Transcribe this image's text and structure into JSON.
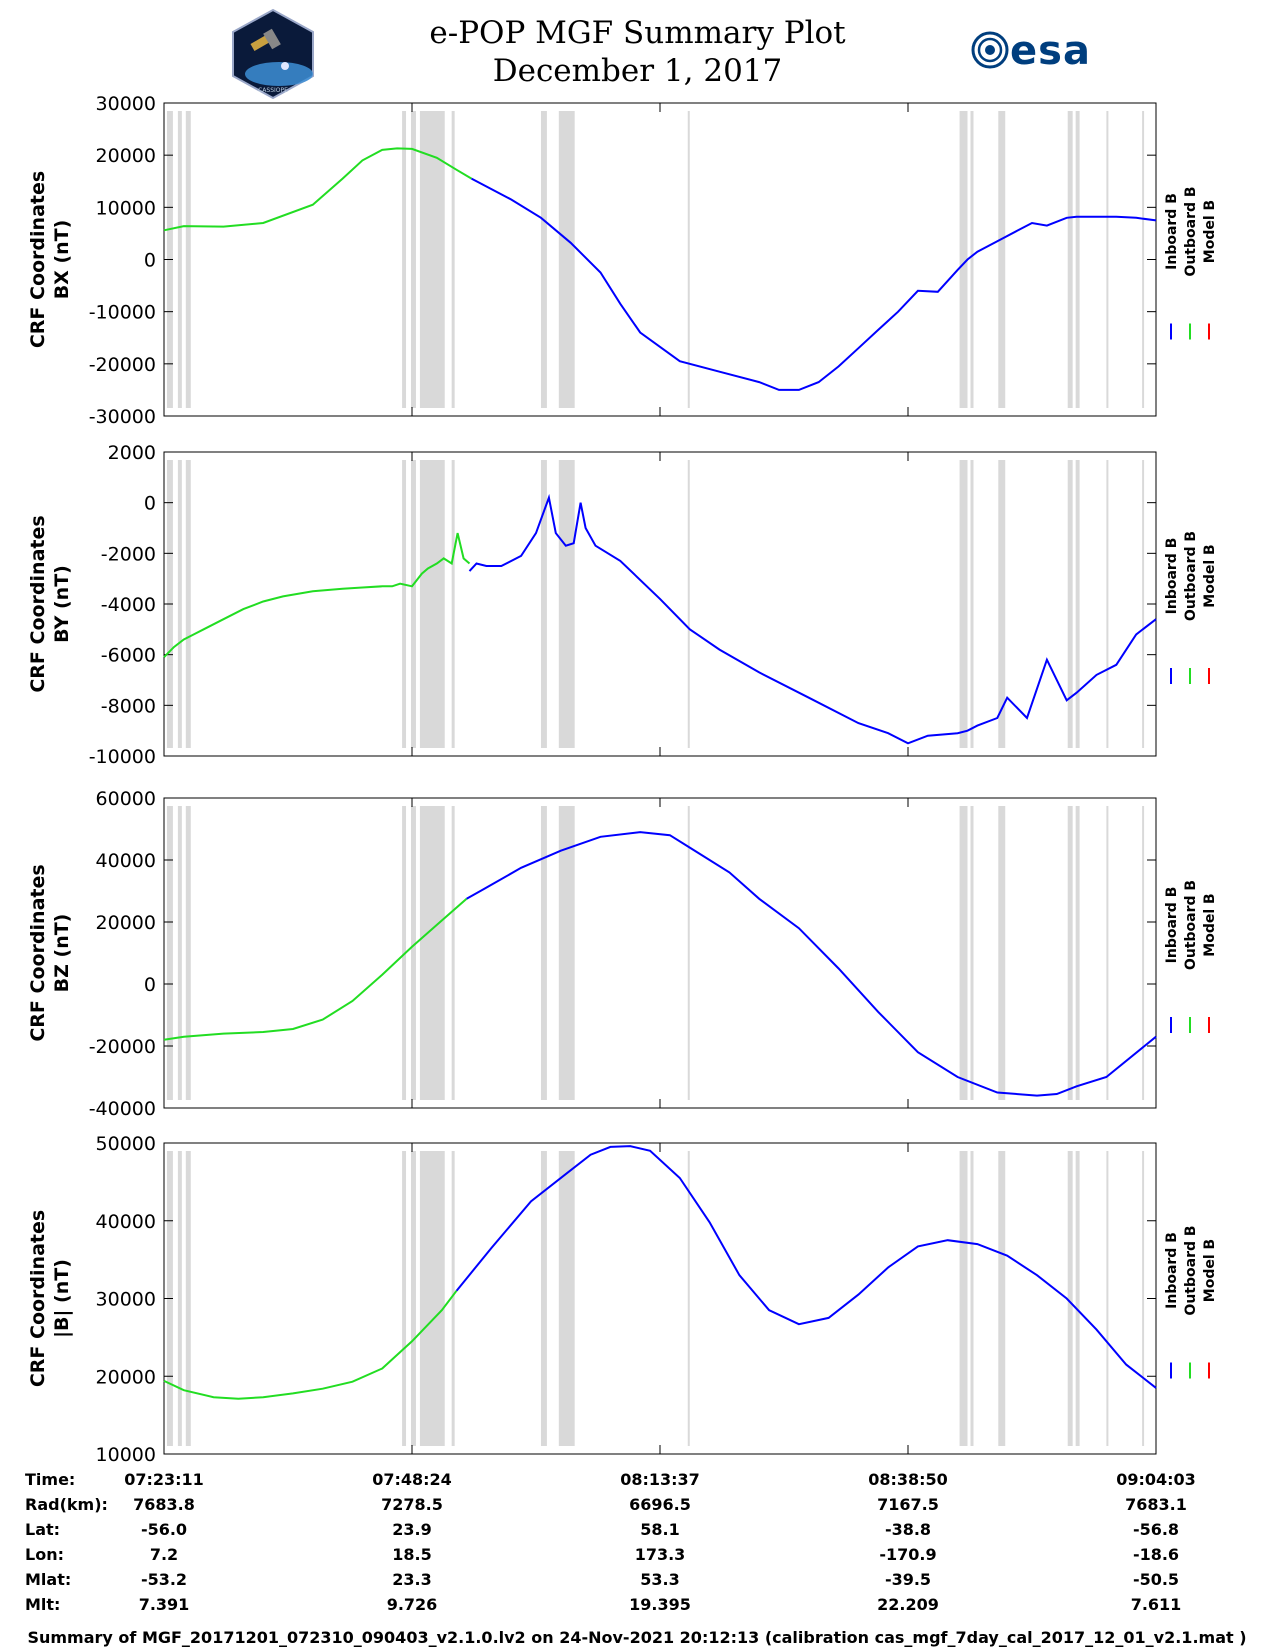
{
  "header": {
    "title": "e-POP MGF Summary Plot",
    "date": "December 1, 2017",
    "logo_left_text": "CASSIOPE",
    "logo_right_text": "esa"
  },
  "legend": {
    "labels": [
      "Inboard B",
      "Outboard B",
      "Model B"
    ]
  },
  "colors": {
    "inboard": "#0000ff",
    "outboard": "#22dd22",
    "model": "#ff0000",
    "gap_shading": "#d9d9d9"
  },
  "chart_data": [
    {
      "type": "line",
      "ylabel_line1": "CRF Coordinates",
      "ylabel_line2": "BX (nT)",
      "ylim": [
        -30000,
        30000
      ],
      "yticks": [
        -30000,
        -20000,
        -10000,
        0,
        10000,
        20000,
        30000
      ],
      "series": [
        {
          "name": "Outboard B",
          "x": [
            0,
            2,
            6,
            10,
            15,
            18,
            20,
            22,
            23.5,
            25,
            27.5,
            29.5,
            31
          ],
          "values": [
            5600,
            6400,
            6300,
            7000,
            10500,
            15500,
            19000,
            21000,
            21300,
            21200,
            19500,
            17200,
            15500
          ]
        },
        {
          "name": "Inboard B",
          "x": [
            31,
            35,
            38,
            41,
            44,
            46,
            48,
            52,
            56,
            60,
            62,
            64,
            66,
            68,
            70,
            72,
            74,
            76,
            78,
            80,
            81,
            82,
            84,
            86,
            87.5,
            89,
            91,
            92,
            94,
            96,
            98,
            100
          ],
          "values": [
            15500,
            11500,
            8000,
            3200,
            -2500,
            -8500,
            -14000,
            -19500,
            -21500,
            -23500,
            -25000,
            -25000,
            -23500,
            -20500,
            -17000,
            -13500,
            -10000,
            -6000,
            -6200,
            -2000,
            0,
            1500,
            3500,
            5500,
            7000,
            6500,
            8000,
            8200,
            8200,
            8200,
            8000,
            7500
          ]
        }
      ]
    },
    {
      "type": "line",
      "ylabel_line1": "CRF Coordinates",
      "ylabel_line2": "BY (nT)",
      "ylim": [
        -10000,
        2000
      ],
      "yticks": [
        -10000,
        -8000,
        -6000,
        -4000,
        -2000,
        0,
        2000
      ],
      "series": [
        {
          "name": "Outboard B",
          "x": [
            0,
            1,
            2,
            3,
            4,
            6,
            8,
            10,
            12,
            15,
            18,
            20,
            22,
            23,
            23.8,
            25,
            26,
            26.6,
            27.5,
            28.2,
            29,
            29.6,
            30.2,
            30.8
          ],
          "values": [
            -6100,
            -5700,
            -5400,
            -5200,
            -5000,
            -4600,
            -4200,
            -3900,
            -3700,
            -3500,
            -3400,
            -3350,
            -3300,
            -3300,
            -3200,
            -3300,
            -2800,
            -2600,
            -2400,
            -2200,
            -2400,
            -1200,
            -2200,
            -2400
          ]
        },
        {
          "name": "Inboard B",
          "x": [
            30.8,
            31.5,
            32.5,
            34,
            36,
            37.5,
            38.8,
            39.5,
            40.5,
            41.3,
            42,
            42.5,
            43.5,
            46,
            50,
            53,
            56,
            60,
            65,
            70,
            73,
            75,
            77,
            80,
            81,
            82,
            84,
            85,
            87,
            89,
            91,
            92,
            94,
            96,
            98,
            100
          ],
          "values": [
            -2700,
            -2400,
            -2500,
            -2500,
            -2100,
            -1200,
            200,
            -1200,
            -1700,
            -1600,
            0,
            -1000,
            -1700,
            -2300,
            -3800,
            -5000,
            -5800,
            -6700,
            -7700,
            -8700,
            -9100,
            -9500,
            -9200,
            -9100,
            -9000,
            -8800,
            -8500,
            -7700,
            -8500,
            -6200,
            -7800,
            -7500,
            -6800,
            -6400,
            -5200,
            -4600
          ]
        }
      ]
    },
    {
      "type": "line",
      "ylabel_line1": "CRF Coordinates",
      "ylabel_line2": "BZ (nT)",
      "ylim": [
        -40000,
        60000
      ],
      "yticks": [
        -40000,
        -20000,
        0,
        20000,
        40000,
        60000
      ],
      "series": [
        {
          "name": "Outboard B",
          "x": [
            0,
            2,
            6,
            10,
            13,
            16,
            19,
            22,
            25,
            28,
            30.5
          ],
          "values": [
            -18000,
            -17000,
            -16000,
            -15500,
            -14500,
            -11500,
            -5500,
            3000,
            12000,
            20500,
            27500
          ]
        },
        {
          "name": "Inboard B",
          "x": [
            30.5,
            33,
            36,
            40,
            44,
            48,
            51,
            53,
            57,
            60,
            64,
            68,
            72,
            76,
            80,
            84,
            88,
            90,
            92,
            95,
            100
          ],
          "values": [
            27500,
            32000,
            37500,
            43000,
            47500,
            49000,
            48000,
            44000,
            36000,
            27500,
            18000,
            5000,
            -9000,
            -22000,
            -30000,
            -35000,
            -36000,
            -35500,
            -33000,
            -30000,
            -17000
          ]
        }
      ]
    },
    {
      "type": "line",
      "ylabel_line1": "CRF Coordinates",
      "ylabel_line2": "|B| (nT)",
      "ylim": [
        10000,
        50000
      ],
      "yticks": [
        10000,
        20000,
        30000,
        40000,
        50000
      ],
      "series": [
        {
          "name": "Outboard B",
          "x": [
            0,
            2,
            5,
            7.5,
            10,
            13,
            16,
            19,
            22,
            25,
            28,
            29.5
          ],
          "values": [
            19400,
            18200,
            17300,
            17100,
            17300,
            17800,
            18400,
            19300,
            21000,
            24500,
            28500,
            31000
          ]
        },
        {
          "name": "Inboard B",
          "x": [
            29.5,
            33,
            37,
            40.5,
            43,
            45,
            47,
            49,
            52,
            55,
            58,
            61,
            64,
            67,
            70,
            73,
            76,
            79,
            82,
            85,
            88,
            91,
            94,
            97,
            100
          ],
          "values": [
            31000,
            36500,
            42500,
            46000,
            48500,
            49500,
            49600,
            49000,
            45500,
            39800,
            33000,
            28500,
            26700,
            27500,
            30500,
            34000,
            36700,
            37500,
            37000,
            35500,
            33000,
            30000,
            26000,
            21500,
            18500
          ]
        }
      ]
    }
  ],
  "x_axis": {
    "ticks": [
      "07:23:11",
      "07:48:24",
      "08:13:37",
      "08:38:50",
      "09:04:03"
    ],
    "tick_positions": [
      0,
      25,
      50,
      75,
      100
    ]
  },
  "gap_bands": [
    [
      0.3,
      0.9
    ],
    [
      1.4,
      1.8
    ],
    [
      2.2,
      2.7
    ],
    [
      24.0,
      24.4
    ],
    [
      24.9,
      25.4
    ],
    [
      25.8,
      28.3
    ],
    [
      29.0,
      29.3
    ],
    [
      38.0,
      38.6
    ],
    [
      39.8,
      41.4
    ],
    [
      52.8,
      53.0
    ],
    [
      80.2,
      81.0
    ],
    [
      81.3,
      81.6
    ],
    [
      84.1,
      84.8
    ],
    [
      91.1,
      91.6
    ],
    [
      91.9,
      92.3
    ],
    [
      95.0,
      95.2
    ],
    [
      98.6,
      98.8
    ]
  ],
  "info_table": {
    "row_labels": [
      "Time:",
      "Rad(km):",
      "Lat:",
      "Lon:",
      "Mlat:",
      "Mlt:"
    ],
    "columns": [
      [
        "07:23:11",
        "7683.8",
        "-56.0",
        "7.2",
        "-53.2",
        "7.391"
      ],
      [
        "07:48:24",
        "7278.5",
        "23.9",
        "18.5",
        "23.3",
        "9.726"
      ],
      [
        "08:13:37",
        "6696.5",
        "58.1",
        "173.3",
        "53.3",
        "19.395"
      ],
      [
        "08:38:50",
        "7167.5",
        "-38.8",
        "-170.9",
        "-39.5",
        "22.209"
      ],
      [
        "09:04:03",
        "7683.1",
        "-56.8",
        "-18.6",
        "-50.5",
        "7.611"
      ]
    ]
  },
  "footer": {
    "text": "Summary of MGF_20171201_072310_090403_v2.1.0.lv2 on 24-Nov-2021 20:12:13 (calibration cas_mgf_7day_cal_2017_12_01_v2.1.mat )"
  }
}
